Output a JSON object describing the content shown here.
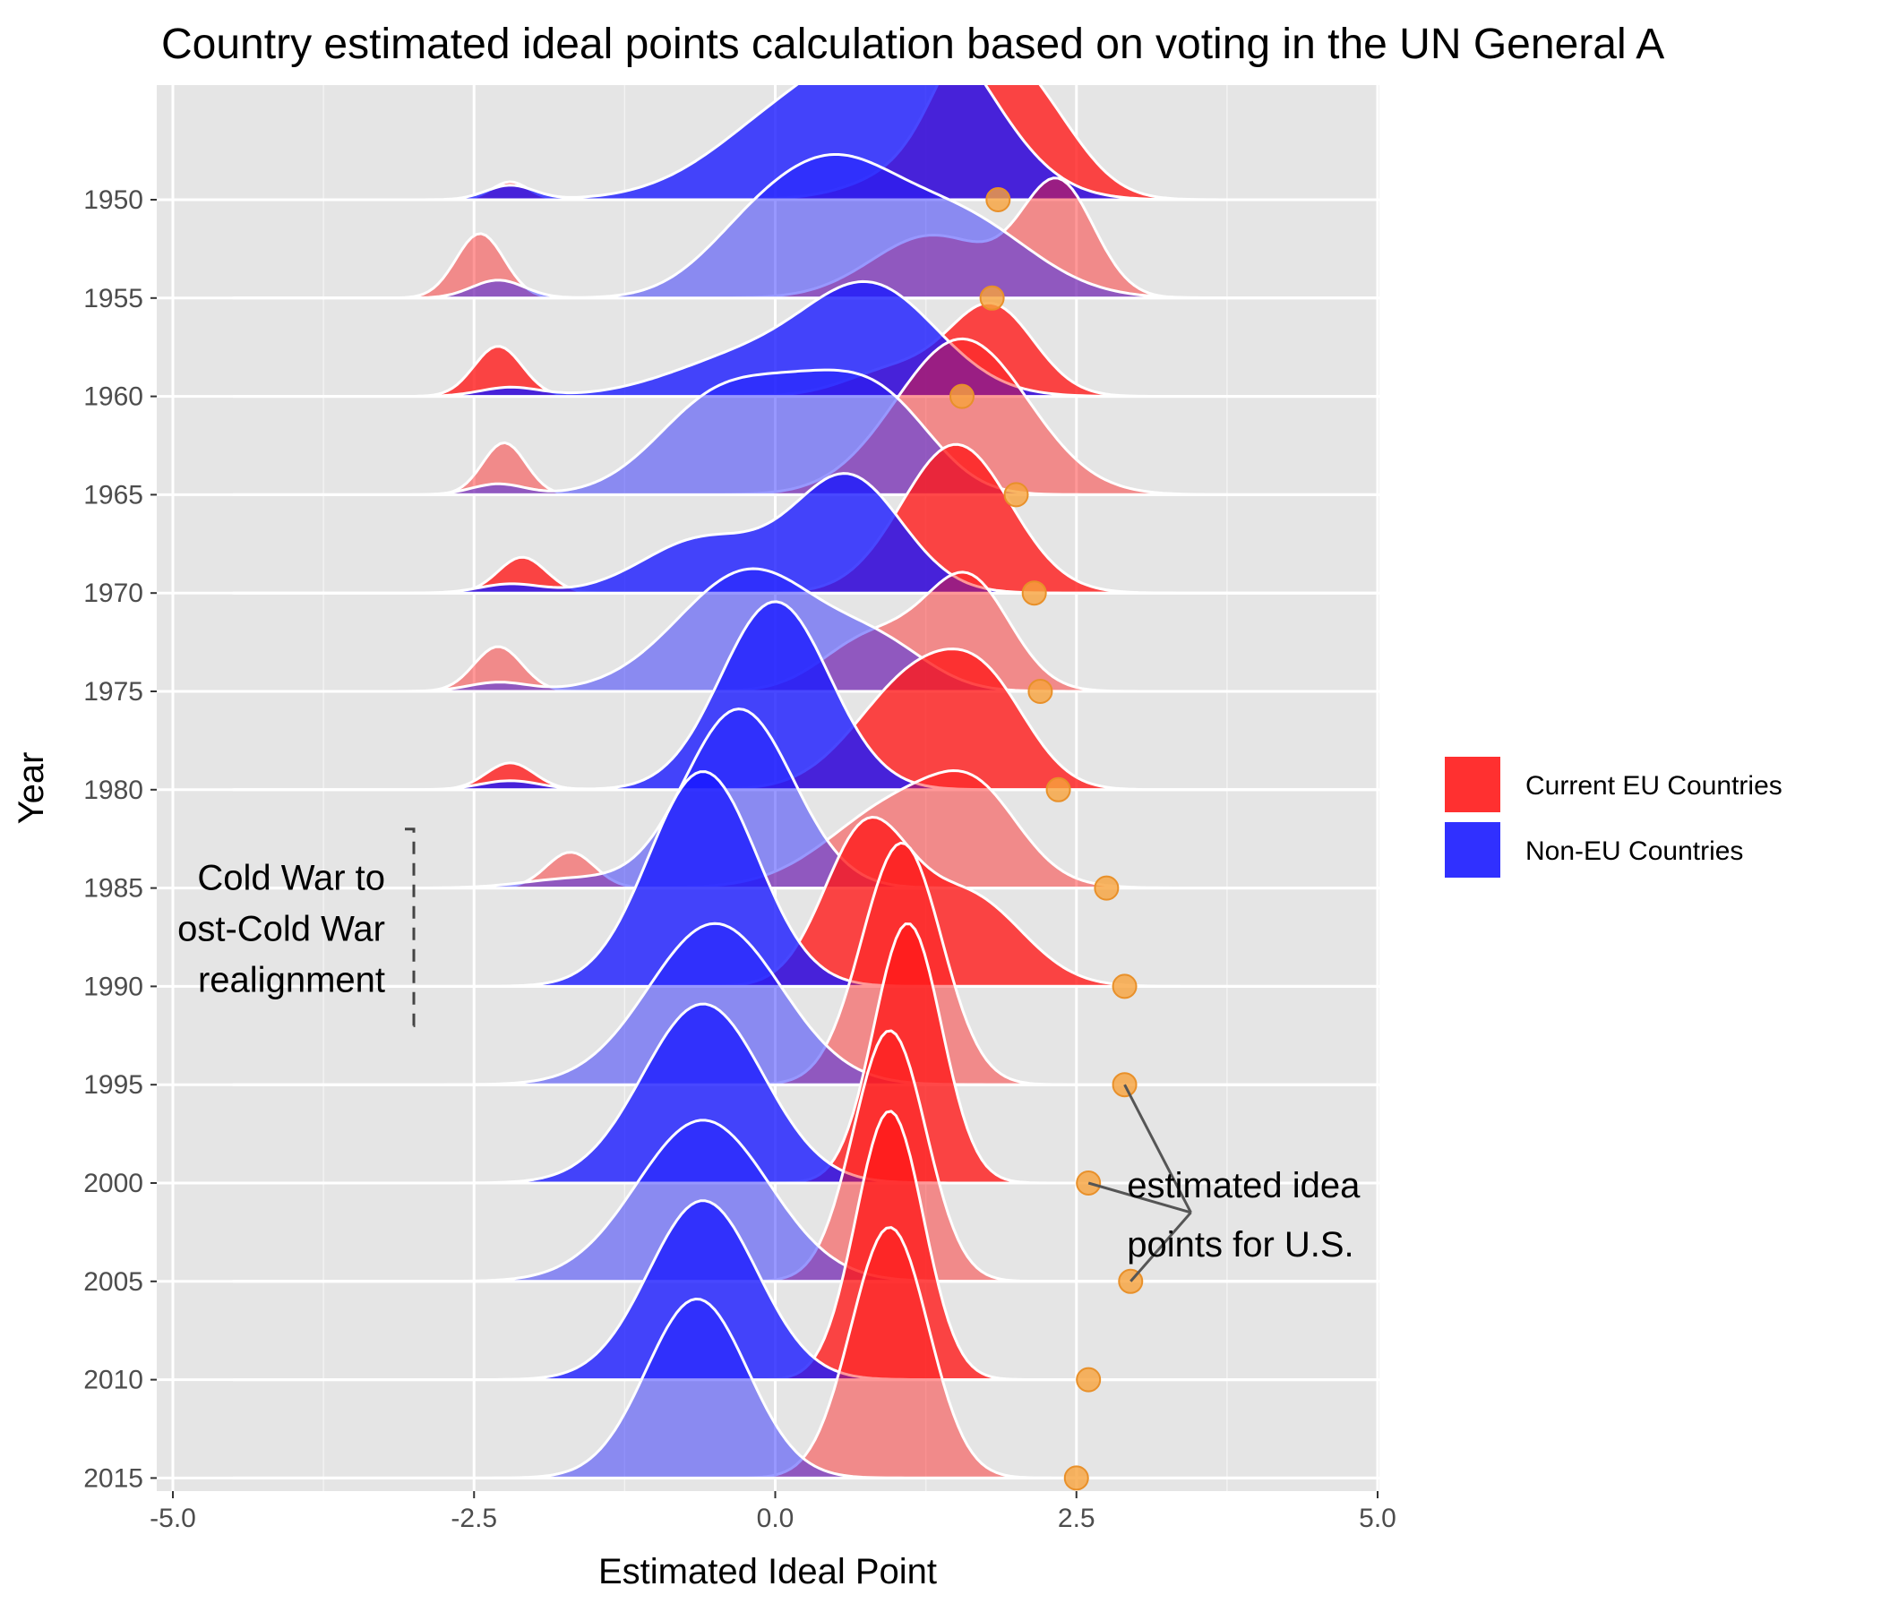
{
  "chart_data": {
    "type": "ridgeline",
    "title": "Country estimated ideal points calculation based on voting in the UN General A",
    "xlabel": "Estimated Ideal Point",
    "ylabel": "Year",
    "xlim": [
      -5.0,
      5.0
    ],
    "x_ticks": [
      "-5.0",
      "-2.5",
      "0.0",
      "2.5",
      "5.0"
    ],
    "x_tick_values": [
      -5,
      -2.5,
      0,
      2.5,
      5
    ],
    "years": [
      "1950",
      "1955",
      "1960",
      "1965",
      "1970",
      "1975",
      "1980",
      "1985",
      "1990",
      "1995",
      "2000",
      "2005",
      "2010",
      "2015"
    ],
    "grid": true,
    "legend_position": "right",
    "series": [
      {
        "name": "Current EU Countries",
        "color": "#ff1a1a",
        "components": [
          [
            [
              -2.2,
              0.15,
              0.1
            ],
            [
              1.6,
              0.3,
              0.5
            ],
            [
              2.1,
              0.4,
              0.55
            ],
            [
              1.3,
              0.5,
              0.2
            ]
          ],
          [
            [
              -2.45,
              0.2,
              0.36
            ],
            [
              2.35,
              0.3,
              0.63
            ],
            [
              1.3,
              0.5,
              0.35
            ]
          ],
          [
            [
              -2.3,
              0.2,
              0.28
            ],
            [
              1.8,
              0.35,
              0.5
            ],
            [
              1.0,
              0.4,
              0.15
            ]
          ],
          [
            [
              -2.25,
              0.18,
              0.29
            ],
            [
              1.55,
              0.55,
              0.87
            ]
          ],
          [
            [
              -2.1,
              0.2,
              0.2
            ],
            [
              1.5,
              0.45,
              0.83
            ]
          ],
          [
            [
              -2.3,
              0.2,
              0.25
            ],
            [
              0.8,
              0.4,
              0.3
            ],
            [
              1.6,
              0.35,
              0.62
            ]
          ],
          [
            [
              -2.2,
              0.2,
              0.15
            ],
            [
              1.2,
              0.5,
              0.65
            ],
            [
              1.8,
              0.35,
              0.35
            ]
          ],
          [
            [
              -1.7,
              0.2,
              0.2
            ],
            [
              1.1,
              0.6,
              0.5
            ],
            [
              1.7,
              0.35,
              0.3
            ]
          ],
          [
            [
              0.75,
              0.35,
              0.85
            ],
            [
              1.6,
              0.45,
              0.5
            ]
          ],
          [
            [
              1.05,
              0.33,
              1.35
            ]
          ],
          [
            [
              1.1,
              0.28,
              1.45
            ]
          ],
          [
            [
              0.95,
              0.3,
              1.4
            ]
          ],
          [
            [
              0.95,
              0.28,
              1.5
            ]
          ],
          [
            [
              0.95,
              0.32,
              1.4
            ]
          ]
        ]
      },
      {
        "name": "Non-EU Countries",
        "color": "#1a1aff",
        "components": [
          [
            [
              -2.2,
              0.2,
              0.08
            ],
            [
              0.3,
              0.7,
              0.55
            ],
            [
              1.3,
              0.55,
              0.8
            ]
          ],
          [
            [
              -2.3,
              0.22,
              0.1
            ],
            [
              -0.2,
              0.45,
              0.3
            ],
            [
              0.5,
              0.5,
              0.6
            ],
            [
              1.5,
              0.6,
              0.45
            ]
          ],
          [
            [
              -2.2,
              0.25,
              0.05
            ],
            [
              -0.3,
              0.6,
              0.2
            ],
            [
              0.8,
              0.55,
              0.6
            ]
          ],
          [
            [
              -2.3,
              0.22,
              0.06
            ],
            [
              -0.5,
              0.5,
              0.5
            ],
            [
              0.4,
              0.5,
              0.5
            ],
            [
              1.0,
              0.4,
              0.3
            ]
          ],
          [
            [
              -2.2,
              0.25,
              0.05
            ],
            [
              -0.6,
              0.5,
              0.3
            ],
            [
              0.6,
              0.45,
              0.65
            ]
          ],
          [
            [
              -2.3,
              0.25,
              0.05
            ],
            [
              -0.2,
              0.6,
              0.68
            ],
            [
              0.9,
              0.4,
              0.2
            ]
          ],
          [
            [
              -2.2,
              0.25,
              0.05
            ],
            [
              0.0,
              0.45,
              1.05
            ]
          ],
          [
            [
              -1.7,
              0.4,
              0.05
            ],
            [
              -0.3,
              0.45,
              1.0
            ]
          ],
          [
            [
              -0.6,
              0.45,
              1.2
            ]
          ],
          [
            [
              -0.5,
              0.55,
              0.9
            ]
          ],
          [
            [
              -0.6,
              0.5,
              1.0
            ]
          ],
          [
            [
              -0.6,
              0.55,
              0.9
            ]
          ],
          [
            [
              -0.6,
              0.45,
              1.0
            ]
          ],
          [
            [
              -0.65,
              0.42,
              1.0
            ]
          ]
        ]
      }
    ],
    "us_points": {
      "name": "U.S.",
      "color": "#f7a23c",
      "x": [
        1.85,
        1.8,
        1.55,
        2.0,
        2.15,
        2.2,
        2.35,
        2.75,
        2.9,
        2.9,
        2.6,
        2.95,
        2.6,
        2.5
      ]
    },
    "annotations": [
      {
        "text_lines": [
          "Cold War to",
          "ost-Cold War",
          "realignment"
        ],
        "bracket_x": -3.0,
        "year_from": "1982",
        "year_to": "1992"
      },
      {
        "text_lines": [
          "estimated idea",
          "points for U.S."
        ],
        "points": [
          "1995",
          "2000",
          "2005"
        ]
      }
    ]
  }
}
